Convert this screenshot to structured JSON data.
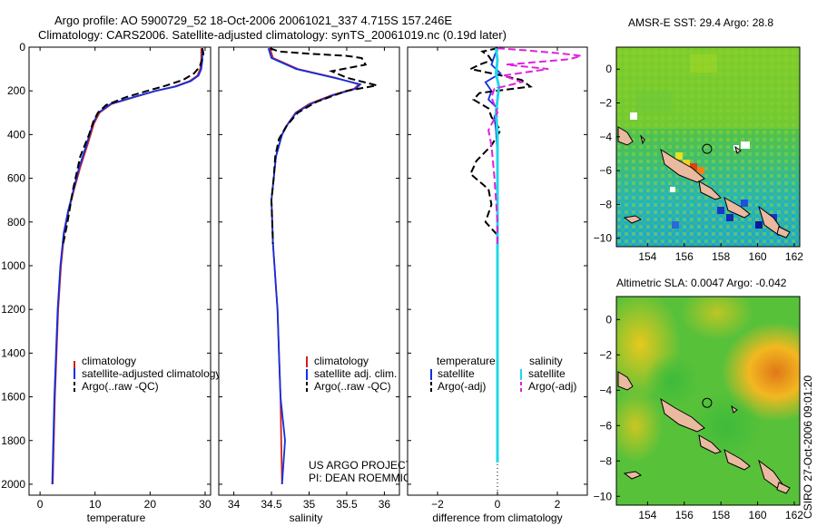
{
  "header": {
    "title_line1": "Argo profile: AO 5900729_52 18-Oct-2006 20061021_337 4.715S 157.246E",
    "title_line2": "Climatology: CARS2006. Satellite-adjusted climatology: synTS_20061019.nc (0.19d later)"
  },
  "stamp": "CSIRO 27-Oct-2006 09:01:20",
  "colors": {
    "climatology": "#d02020",
    "satellite": "#1030e0",
    "argo": "#000000",
    "salinity_sat": "#20d8e8",
    "salinity_argo": "#e020e0"
  },
  "chart_data": [
    {
      "type": "line",
      "id": "temperature",
      "xlabel": "temperature",
      "xlim": [
        -2,
        31
      ],
      "xticks": [
        0,
        10,
        20,
        30
      ],
      "ylim": [
        0,
        2050
      ],
      "yticks": [
        0,
        200,
        400,
        600,
        800,
        1000,
        1200,
        1400,
        1600,
        1800,
        2000
      ],
      "y_inverted": true,
      "legend": [
        "climatology",
        "satellite-adjusted climatology",
        "Argo(..raw -QC)"
      ],
      "series": [
        {
          "name": "climatology",
          "style": "solid",
          "color": "#d02020",
          "points": [
            [
              29.3,
              5
            ],
            [
              29.3,
              60
            ],
            [
              29.1,
              100
            ],
            [
              28.6,
              130
            ],
            [
              27.2,
              155
            ],
            [
              24.5,
              180
            ],
            [
              21,
              200
            ],
            [
              17,
              230
            ],
            [
              13,
              260
            ],
            [
              10.8,
              300
            ],
            [
              9.8,
              350
            ],
            [
              8.6,
              450
            ],
            [
              7.3,
              550
            ],
            [
              6.2,
              650
            ],
            [
              5.2,
              750
            ],
            [
              4.4,
              850
            ],
            [
              3.8,
              1000
            ],
            [
              3.3,
              1200
            ],
            [
              3,
              1400
            ],
            [
              2.7,
              1600
            ],
            [
              2.5,
              1800
            ],
            [
              2.3,
              2000
            ]
          ]
        },
        {
          "name": "satellite",
          "style": "solid",
          "color": "#1030e0",
          "points": [
            [
              29.5,
              5
            ],
            [
              29.5,
              60
            ],
            [
              29.3,
              100
            ],
            [
              28.8,
              130
            ],
            [
              27.4,
              155
            ],
            [
              24.7,
              180
            ],
            [
              21,
              200
            ],
            [
              16.8,
              230
            ],
            [
              12.8,
              260
            ],
            [
              10.6,
              300
            ],
            [
              9.6,
              350
            ],
            [
              8.4,
              450
            ],
            [
              7.1,
              550
            ],
            [
              6.1,
              650
            ],
            [
              5.1,
              750
            ],
            [
              4.3,
              850
            ],
            [
              3.7,
              1000
            ],
            [
              3.2,
              1200
            ],
            [
              2.9,
              1400
            ],
            [
              2.6,
              1600
            ],
            [
              2.4,
              1800
            ],
            [
              2.2,
              2000
            ]
          ]
        },
        {
          "name": "Argo",
          "style": "dashed",
          "color": "#000000",
          "points": [
            [
              29.5,
              5
            ],
            [
              29.7,
              30
            ],
            [
              29.4,
              60
            ],
            [
              29,
              90
            ],
            [
              28,
              120
            ],
            [
              26,
              150
            ],
            [
              23,
              175
            ],
            [
              19.5,
              200
            ],
            [
              15.5,
              230
            ],
            [
              12,
              265
            ],
            [
              10.5,
              300
            ],
            [
              9.7,
              340
            ],
            [
              8.9,
              400
            ],
            [
              7.3,
              500
            ],
            [
              6,
              650
            ],
            [
              5,
              800
            ],
            [
              4.2,
              900
            ]
          ]
        }
      ],
      "credit": []
    },
    {
      "type": "line",
      "id": "salinity",
      "xlabel": "salinity",
      "xlim": [
        33.8,
        36.2
      ],
      "xticks": [
        34,
        34.5,
        35,
        35.5,
        36
      ],
      "ylim": [
        0,
        2050
      ],
      "y_inverted": true,
      "legend": [
        "climatology",
        "satellite adj. clim.",
        "Argo(..raw -QC)"
      ],
      "series": [
        {
          "name": "climatology",
          "style": "solid",
          "color": "#d02020",
          "points": [
            [
              34.48,
              5
            ],
            [
              34.52,
              50
            ],
            [
              34.85,
              100
            ],
            [
              35.35,
              140
            ],
            [
              35.66,
              170
            ],
            [
              35.6,
              190
            ],
            [
              35.3,
              220
            ],
            [
              35.0,
              260
            ],
            [
              34.82,
              300
            ],
            [
              34.72,
              350
            ],
            [
              34.64,
              400
            ],
            [
              34.56,
              500
            ],
            [
              34.53,
              600
            ],
            [
              34.5,
              700
            ],
            [
              34.51,
              800
            ],
            [
              34.52,
              900
            ],
            [
              34.54,
              1000
            ],
            [
              34.56,
              1100
            ],
            [
              34.58,
              1200
            ],
            [
              34.6,
              1400
            ],
            [
              34.62,
              1600
            ],
            [
              34.63,
              1800
            ],
            [
              34.64,
              2000
            ]
          ]
        },
        {
          "name": "satellite",
          "style": "solid",
          "color": "#1030e0",
          "points": [
            [
              34.46,
              5
            ],
            [
              34.5,
              50
            ],
            [
              34.83,
              100
            ],
            [
              35.33,
              140
            ],
            [
              35.68,
              170
            ],
            [
              35.62,
              190
            ],
            [
              35.32,
              220
            ],
            [
              35.02,
              260
            ],
            [
              34.83,
              300
            ],
            [
              34.72,
              350
            ],
            [
              34.64,
              400
            ],
            [
              34.56,
              500
            ],
            [
              34.53,
              600
            ],
            [
              34.5,
              700
            ],
            [
              34.51,
              800
            ],
            [
              34.52,
              900
            ],
            [
              34.54,
              1000
            ],
            [
              34.56,
              1100
            ],
            [
              34.58,
              1200
            ],
            [
              34.6,
              1400
            ],
            [
              34.62,
              1600
            ],
            [
              34.68,
              1800
            ],
            [
              34.64,
              2000
            ]
          ]
        },
        {
          "name": "Argo",
          "style": "dashed",
          "color": "#000000",
          "points": [
            [
              34.48,
              5
            ],
            [
              34.6,
              20
            ],
            [
              35.0,
              30
            ],
            [
              35.5,
              40
            ],
            [
              35.7,
              50
            ],
            [
              35.75,
              80
            ],
            [
              35.3,
              110
            ],
            [
              35.5,
              140
            ],
            [
              35.9,
              175
            ],
            [
              35.5,
              200
            ],
            [
              35.1,
              250
            ],
            [
              34.85,
              300
            ],
            [
              34.7,
              360
            ],
            [
              34.6,
              420
            ],
            [
              34.55,
              500
            ],
            [
              34.53,
              600
            ],
            [
              34.5,
              700
            ],
            [
              34.51,
              800
            ],
            [
              34.52,
              900
            ]
          ]
        }
      ],
      "credit": [
        "US ARGO PROJECT",
        "PI: DEAN ROEMMICH"
      ]
    },
    {
      "type": "line",
      "id": "difference",
      "xlabel": "difference from climatology",
      "xlim": [
        -3,
        3
      ],
      "xticks": [
        -2,
        0,
        2
      ],
      "ylim": [
        0,
        2050
      ],
      "y_inverted": true,
      "legend_headers": [
        "temperature",
        "salinity"
      ],
      "legend": [
        "satellite",
        "Argo(-adj)",
        "satellite",
        "Argo(-adj)"
      ],
      "series": [
        {
          "name": "temperature satellite",
          "style": "solid",
          "color": "#1030e0",
          "points": [
            [
              0,
              5
            ],
            [
              -0.1,
              40
            ],
            [
              -0.2,
              80
            ],
            [
              0.1,
              120
            ],
            [
              -0.4,
              160
            ],
            [
              -0.2,
              200
            ],
            [
              -0.3,
              240
            ],
            [
              0,
              280
            ],
            [
              -0.1,
              320
            ],
            [
              -0.05,
              380
            ],
            [
              0,
              500
            ],
            [
              0,
              700
            ],
            [
              0,
              900
            ],
            [
              0,
              1000
            ]
          ]
        },
        {
          "name": "temperature Argo",
          "style": "dashed",
          "color": "#000000",
          "points": [
            [
              0,
              5
            ],
            [
              -0.5,
              20
            ],
            [
              -0.3,
              40
            ],
            [
              -0.2,
              60
            ],
            [
              -0.6,
              80
            ],
            [
              -0.9,
              100
            ],
            [
              -0.2,
              120
            ],
            [
              0.8,
              150
            ],
            [
              1.1,
              180
            ],
            [
              -0.6,
              210
            ],
            [
              -0.8,
              240
            ],
            [
              -0.3,
              280
            ],
            [
              -0.2,
              320
            ],
            [
              0.1,
              380
            ],
            [
              -0.2,
              450
            ],
            [
              -0.7,
              520
            ],
            [
              -0.9,
              580
            ],
            [
              -0.3,
              650
            ],
            [
              -0.2,
              720
            ],
            [
              -0.4,
              800
            ],
            [
              0,
              860
            ],
            [
              0,
              950
            ]
          ]
        },
        {
          "name": "salinity satellite",
          "style": "solid",
          "color": "#20d8e8",
          "points": [
            [
              -0.05,
              5
            ],
            [
              0,
              60
            ],
            [
              -0.05,
              120
            ],
            [
              0.05,
              180
            ],
            [
              0,
              240
            ],
            [
              -0.05,
              300
            ],
            [
              0,
              400
            ],
            [
              0,
              600
            ],
            [
              0,
              800
            ],
            [
              0,
              1000
            ],
            [
              0,
              1200
            ],
            [
              0,
              1400
            ],
            [
              0,
              1600
            ],
            [
              0,
              1800
            ],
            [
              0,
              1900
            ]
          ]
        },
        {
          "name": "salinity Argo",
          "style": "dashed",
          "color": "#e020e0",
          "points": [
            [
              0,
              5
            ],
            [
              1,
              15
            ],
            [
              2.2,
              30
            ],
            [
              2.8,
              40
            ],
            [
              2.4,
              55
            ],
            [
              0.3,
              80
            ],
            [
              1.7,
              100
            ],
            [
              0.2,
              130
            ],
            [
              0.8,
              160
            ],
            [
              -0.1,
              190
            ],
            [
              -0.2,
              230
            ],
            [
              0,
              300
            ],
            [
              -0.3,
              380
            ],
            [
              -0.2,
              450
            ],
            [
              -0.15,
              520
            ],
            [
              -0.1,
              600
            ],
            [
              -0.05,
              700
            ],
            [
              0,
              800
            ],
            [
              0,
              900
            ]
          ]
        }
      ],
      "credit": []
    },
    {
      "type": "heatmap",
      "id": "sst",
      "title": "AMSR-E SST: 29.4 Argo: 28.8",
      "xticks": [
        154,
        156,
        158,
        160,
        162
      ],
      "yticks": [
        0,
        -2,
        -4,
        -6,
        -8,
        -10
      ],
      "xlim": [
        152.3,
        162.3
      ],
      "ylim": [
        -10.5,
        1.3
      ],
      "marker": {
        "lon": 157.246,
        "lat": -4.715
      }
    },
    {
      "type": "heatmap",
      "id": "sla",
      "title": "Altimetric SLA: 0.0047 Argo: -0.042",
      "xticks": [
        154,
        156,
        158,
        160,
        162
      ],
      "yticks": [
        0,
        -2,
        -4,
        -6,
        -8,
        -10
      ],
      "xlim": [
        152.3,
        162.3
      ],
      "ylim": [
        -10.5,
        1.3
      ],
      "marker": {
        "lon": 157.246,
        "lat": -4.715
      }
    }
  ]
}
